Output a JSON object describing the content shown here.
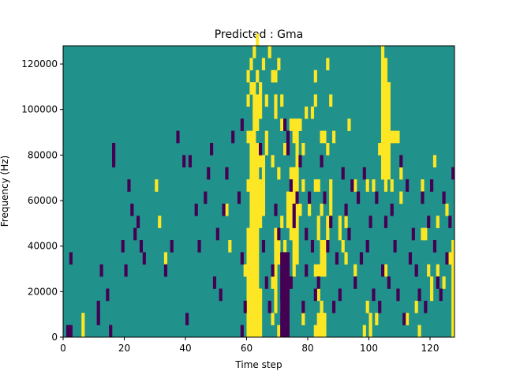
{
  "chart_data": {
    "type": "heatmap",
    "title": "Predicted : Gma",
    "xlabel": "Time step",
    "ylabel": "Frequency (Hz)",
    "xlim": [
      0,
      128
    ],
    "ylim": [
      0,
      128000
    ],
    "x_ticks": [
      0,
      20,
      40,
      60,
      80,
      100,
      120
    ],
    "y_ticks": [
      0,
      20000,
      40000,
      60000,
      80000,
      100000,
      120000
    ],
    "colormap": "viridis",
    "value_levels": [
      -1,
      0,
      1
    ],
    "background_value": 0,
    "colors": {
      "low": "#440154",
      "mid": "#21918c",
      "high": "#fde725"
    },
    "cells_high": [
      [
        6,
        0
      ],
      [
        6,
        1
      ],
      [
        30,
        12
      ],
      [
        31,
        9
      ],
      [
        33,
        6
      ],
      [
        53,
        10
      ],
      [
        54,
        7
      ],
      [
        59,
        5
      ],
      [
        60,
        0
      ],
      [
        60,
        1
      ],
      [
        60,
        2
      ],
      [
        60,
        3
      ],
      [
        60,
        4
      ],
      [
        60,
        5
      ],
      [
        60,
        6
      ],
      [
        60,
        7
      ],
      [
        60,
        8
      ],
      [
        60,
        12
      ],
      [
        60,
        16
      ],
      [
        60,
        19
      ],
      [
        60,
        21
      ],
      [
        61,
        0
      ],
      [
        61,
        1
      ],
      [
        61,
        2
      ],
      [
        61,
        3
      ],
      [
        61,
        4
      ],
      [
        61,
        5
      ],
      [
        61,
        6
      ],
      [
        61,
        7
      ],
      [
        61,
        8
      ],
      [
        61,
        9
      ],
      [
        61,
        10
      ],
      [
        61,
        11
      ],
      [
        61,
        12
      ],
      [
        61,
        13
      ],
      [
        61,
        14
      ],
      [
        61,
        15
      ],
      [
        61,
        16
      ],
      [
        61,
        20
      ],
      [
        61,
        22
      ],
      [
        62,
        0
      ],
      [
        62,
        1
      ],
      [
        62,
        2
      ],
      [
        62,
        3
      ],
      [
        62,
        4
      ],
      [
        62,
        5
      ],
      [
        62,
        6
      ],
      [
        62,
        7
      ],
      [
        62,
        8
      ],
      [
        62,
        9
      ],
      [
        62,
        10
      ],
      [
        62,
        11
      ],
      [
        62,
        12
      ],
      [
        62,
        13
      ],
      [
        62,
        14
      ],
      [
        62,
        15
      ],
      [
        62,
        16
      ],
      [
        62,
        17
      ],
      [
        62,
        18
      ],
      [
        62,
        19
      ],
      [
        62,
        20
      ],
      [
        62,
        23
      ],
      [
        63,
        0
      ],
      [
        63,
        1
      ],
      [
        63,
        2
      ],
      [
        63,
        3
      ],
      [
        63,
        4
      ],
      [
        63,
        5
      ],
      [
        63,
        6
      ],
      [
        63,
        7
      ],
      [
        63,
        8
      ],
      [
        63,
        9
      ],
      [
        63,
        10
      ],
      [
        63,
        11
      ],
      [
        63,
        12
      ],
      [
        63,
        13
      ],
      [
        63,
        14
      ],
      [
        63,
        15
      ],
      [
        63,
        17
      ],
      [
        63,
        18
      ],
      [
        63,
        19
      ],
      [
        63,
        21
      ],
      [
        63,
        24
      ],
      [
        64,
        0
      ],
      [
        64,
        1
      ],
      [
        64,
        2
      ],
      [
        64,
        3
      ],
      [
        64,
        9
      ],
      [
        64,
        10
      ],
      [
        64,
        11
      ],
      [
        64,
        12
      ],
      [
        64,
        14
      ],
      [
        64,
        18
      ],
      [
        64,
        19
      ],
      [
        64,
        20
      ],
      [
        65,
        10
      ],
      [
        65,
        11
      ],
      [
        65,
        12
      ],
      [
        65,
        13
      ],
      [
        65,
        14
      ],
      [
        65,
        22
      ],
      [
        66,
        15
      ],
      [
        66,
        16
      ],
      [
        66,
        19
      ],
      [
        67,
        23
      ],
      [
        68,
        1
      ],
      [
        68,
        4
      ],
      [
        68,
        14
      ],
      [
        68,
        21
      ],
      [
        69,
        2
      ],
      [
        69,
        3
      ],
      [
        69,
        4
      ],
      [
        69,
        5
      ],
      [
        69,
        6
      ],
      [
        69,
        7
      ],
      [
        69,
        8
      ],
      [
        69,
        18
      ],
      [
        69,
        19
      ],
      [
        69,
        21
      ],
      [
        70,
        0
      ],
      [
        70,
        6
      ],
      [
        70,
        7
      ],
      [
        70,
        13
      ],
      [
        70,
        22
      ],
      [
        71,
        2
      ],
      [
        71,
        9
      ],
      [
        71,
        17
      ],
      [
        71,
        19
      ],
      [
        72,
        5
      ],
      [
        72,
        6
      ],
      [
        72,
        7
      ],
      [
        72,
        15
      ],
      [
        73,
        0
      ],
      [
        73,
        1
      ],
      [
        73,
        9
      ],
      [
        73,
        10
      ],
      [
        73,
        11
      ],
      [
        74,
        8
      ],
      [
        74,
        9
      ],
      [
        74,
        10
      ],
      [
        74,
        11
      ],
      [
        74,
        13
      ],
      [
        74,
        17
      ],
      [
        75,
        5
      ],
      [
        75,
        6
      ],
      [
        75,
        7
      ],
      [
        75,
        8
      ],
      [
        75,
        9
      ],
      [
        75,
        10
      ],
      [
        75,
        11
      ],
      [
        75,
        12
      ],
      [
        75,
        13
      ],
      [
        75,
        16
      ],
      [
        75,
        17
      ],
      [
        76,
        6
      ],
      [
        76,
        7
      ],
      [
        76,
        8
      ],
      [
        76,
        9
      ],
      [
        76,
        10
      ],
      [
        76,
        11
      ],
      [
        76,
        12
      ],
      [
        76,
        13
      ],
      [
        76,
        14
      ],
      [
        76,
        15
      ],
      [
        76,
        16
      ],
      [
        76,
        17
      ],
      [
        77,
        10
      ],
      [
        77,
        17
      ],
      [
        78,
        1
      ],
      [
        78,
        12
      ],
      [
        78,
        15
      ],
      [
        79,
        18
      ],
      [
        80,
        10
      ],
      [
        81,
        18
      ],
      [
        82,
        0
      ],
      [
        82,
        5
      ],
      [
        82,
        12
      ],
      [
        82,
        19
      ],
      [
        82,
        21
      ],
      [
        83,
        0
      ],
      [
        83,
        1
      ],
      [
        83,
        3
      ],
      [
        83,
        5
      ],
      [
        83,
        8
      ],
      [
        83,
        9
      ],
      [
        83,
        12
      ],
      [
        84,
        0
      ],
      [
        84,
        1
      ],
      [
        84,
        2
      ],
      [
        84,
        5
      ],
      [
        84,
        6
      ],
      [
        84,
        7
      ],
      [
        84,
        10
      ],
      [
        84,
        16
      ],
      [
        85,
        0
      ],
      [
        85,
        1
      ],
      [
        85,
        5
      ],
      [
        85,
        6
      ],
      [
        85,
        7
      ],
      [
        85,
        16
      ],
      [
        86,
        8
      ],
      [
        86,
        9
      ],
      [
        86,
        15
      ],
      [
        86,
        22
      ],
      [
        87,
        10
      ],
      [
        87,
        11
      ],
      [
        87,
        12
      ],
      [
        87,
        19
      ],
      [
        88,
        16
      ],
      [
        90,
        8
      ],
      [
        90,
        9
      ],
      [
        91,
        7
      ],
      [
        92,
        6
      ],
      [
        92,
        9
      ],
      [
        93,
        17
      ],
      [
        95,
        5
      ],
      [
        95,
        12
      ],
      [
        98,
        0
      ],
      [
        99,
        2
      ],
      [
        99,
        12
      ],
      [
        100,
        0
      ],
      [
        100,
        1
      ],
      [
        101,
        12
      ],
      [
        102,
        1
      ],
      [
        103,
        15
      ],
      [
        104,
        13
      ],
      [
        104,
        14
      ],
      [
        104,
        15
      ],
      [
        104,
        16
      ],
      [
        104,
        17
      ],
      [
        104,
        18
      ],
      [
        104,
        19
      ],
      [
        104,
        20
      ],
      [
        104,
        21
      ],
      [
        104,
        22
      ],
      [
        104,
        23
      ],
      [
        105,
        5
      ],
      [
        105,
        12
      ],
      [
        105,
        13
      ],
      [
        105,
        14
      ],
      [
        105,
        15
      ],
      [
        105,
        16
      ],
      [
        105,
        17
      ],
      [
        105,
        18
      ],
      [
        105,
        19
      ],
      [
        105,
        20
      ],
      [
        105,
        21
      ],
      [
        105,
        22
      ],
      [
        106,
        13
      ],
      [
        106,
        14
      ],
      [
        106,
        15
      ],
      [
        106,
        16
      ],
      [
        106,
        17
      ],
      [
        106,
        18
      ],
      [
        106,
        19
      ],
      [
        106,
        20
      ],
      [
        107,
        12
      ],
      [
        107,
        16
      ],
      [
        108,
        16
      ],
      [
        109,
        16
      ],
      [
        110,
        11
      ],
      [
        110,
        13
      ],
      [
        112,
        1
      ],
      [
        115,
        2
      ],
      [
        116,
        0
      ],
      [
        117,
        8
      ],
      [
        117,
        12
      ],
      [
        118,
        8
      ],
      [
        119,
        5
      ],
      [
        120,
        3
      ],
      [
        120,
        4
      ],
      [
        121,
        14
      ],
      [
        122,
        5
      ],
      [
        122,
        9
      ],
      [
        124,
        4
      ],
      [
        125,
        10
      ],
      [
        126,
        6
      ],
      [
        127,
        0
      ],
      [
        127,
        1
      ],
      [
        127,
        2
      ],
      [
        127,
        3
      ],
      [
        127,
        4
      ],
      [
        127,
        5
      ],
      [
        127,
        6
      ],
      [
        127,
        7
      ]
    ],
    "cells_low": [
      [
        1,
        0
      ],
      [
        2,
        0
      ],
      [
        2,
        6
      ],
      [
        11,
        1
      ],
      [
        11,
        2
      ],
      [
        12,
        5
      ],
      [
        14,
        3
      ],
      [
        15,
        0
      ],
      [
        16,
        14
      ],
      [
        16,
        15
      ],
      [
        19,
        7
      ],
      [
        20,
        5
      ],
      [
        21,
        12
      ],
      [
        22,
        10
      ],
      [
        23,
        8
      ],
      [
        24,
        9
      ],
      [
        25,
        7
      ],
      [
        26,
        6
      ],
      [
        33,
        5
      ],
      [
        35,
        7
      ],
      [
        37,
        16
      ],
      [
        39,
        14
      ],
      [
        40,
        1
      ],
      [
        41,
        14
      ],
      [
        43,
        10
      ],
      [
        44,
        7
      ],
      [
        46,
        11
      ],
      [
        47,
        13
      ],
      [
        48,
        15
      ],
      [
        49,
        4
      ],
      [
        50,
        8
      ],
      [
        51,
        3
      ],
      [
        52,
        10
      ],
      [
        53,
        13
      ],
      [
        55,
        16
      ],
      [
        57,
        11
      ],
      [
        58,
        0
      ],
      [
        58,
        6
      ],
      [
        58,
        17
      ],
      [
        59,
        2
      ],
      [
        64,
        15
      ],
      [
        65,
        7
      ],
      [
        66,
        4
      ],
      [
        67,
        2
      ],
      [
        68,
        5
      ],
      [
        69,
        10
      ],
      [
        70,
        8
      ],
      [
        71,
        0
      ],
      [
        71,
        1
      ],
      [
        71,
        2
      ],
      [
        71,
        3
      ],
      [
        71,
        4
      ],
      [
        71,
        5
      ],
      [
        71,
        6
      ],
      [
        72,
        0
      ],
      [
        72,
        1
      ],
      [
        72,
        2
      ],
      [
        72,
        3
      ],
      [
        72,
        4
      ],
      [
        72,
        5
      ],
      [
        72,
        6
      ],
      [
        72,
        17
      ],
      [
        73,
        0
      ],
      [
        73,
        1
      ],
      [
        73,
        2
      ],
      [
        73,
        3
      ],
      [
        73,
        4
      ],
      [
        73,
        5
      ],
      [
        73,
        6
      ],
      [
        73,
        15
      ],
      [
        73,
        16
      ],
      [
        74,
        4
      ],
      [
        74,
        12
      ],
      [
        75,
        9
      ],
      [
        75,
        10
      ],
      [
        76,
        11
      ],
      [
        77,
        14
      ],
      [
        78,
        2
      ],
      [
        79,
        5
      ],
      [
        79,
        8
      ],
      [
        80,
        11
      ],
      [
        81,
        7
      ],
      [
        82,
        3
      ],
      [
        83,
        4
      ],
      [
        84,
        14
      ],
      [
        85,
        11
      ],
      [
        86,
        7
      ],
      [
        87,
        9
      ],
      [
        88,
        2
      ],
      [
        89,
        6
      ],
      [
        90,
        3
      ],
      [
        91,
        13
      ],
      [
        92,
        10
      ],
      [
        93,
        8
      ],
      [
        94,
        12
      ],
      [
        95,
        4
      ],
      [
        96,
        11
      ],
      [
        97,
        6
      ],
      [
        98,
        13
      ],
      [
        99,
        7
      ],
      [
        100,
        9
      ],
      [
        101,
        3
      ],
      [
        102,
        11
      ],
      [
        103,
        2
      ],
      [
        104,
        5
      ],
      [
        105,
        9
      ],
      [
        106,
        4
      ],
      [
        107,
        10
      ],
      [
        108,
        7
      ],
      [
        109,
        3
      ],
      [
        110,
        14
      ],
      [
        111,
        1
      ],
      [
        112,
        12
      ],
      [
        113,
        6
      ],
      [
        114,
        8
      ],
      [
        115,
        5
      ],
      [
        116,
        3
      ],
      [
        117,
        11
      ],
      [
        118,
        2
      ],
      [
        119,
        9
      ],
      [
        120,
        12
      ],
      [
        121,
        7
      ],
      [
        122,
        4
      ],
      [
        123,
        3
      ],
      [
        124,
        11
      ],
      [
        125,
        6
      ],
      [
        126,
        9
      ],
      [
        127,
        13
      ]
    ]
  }
}
